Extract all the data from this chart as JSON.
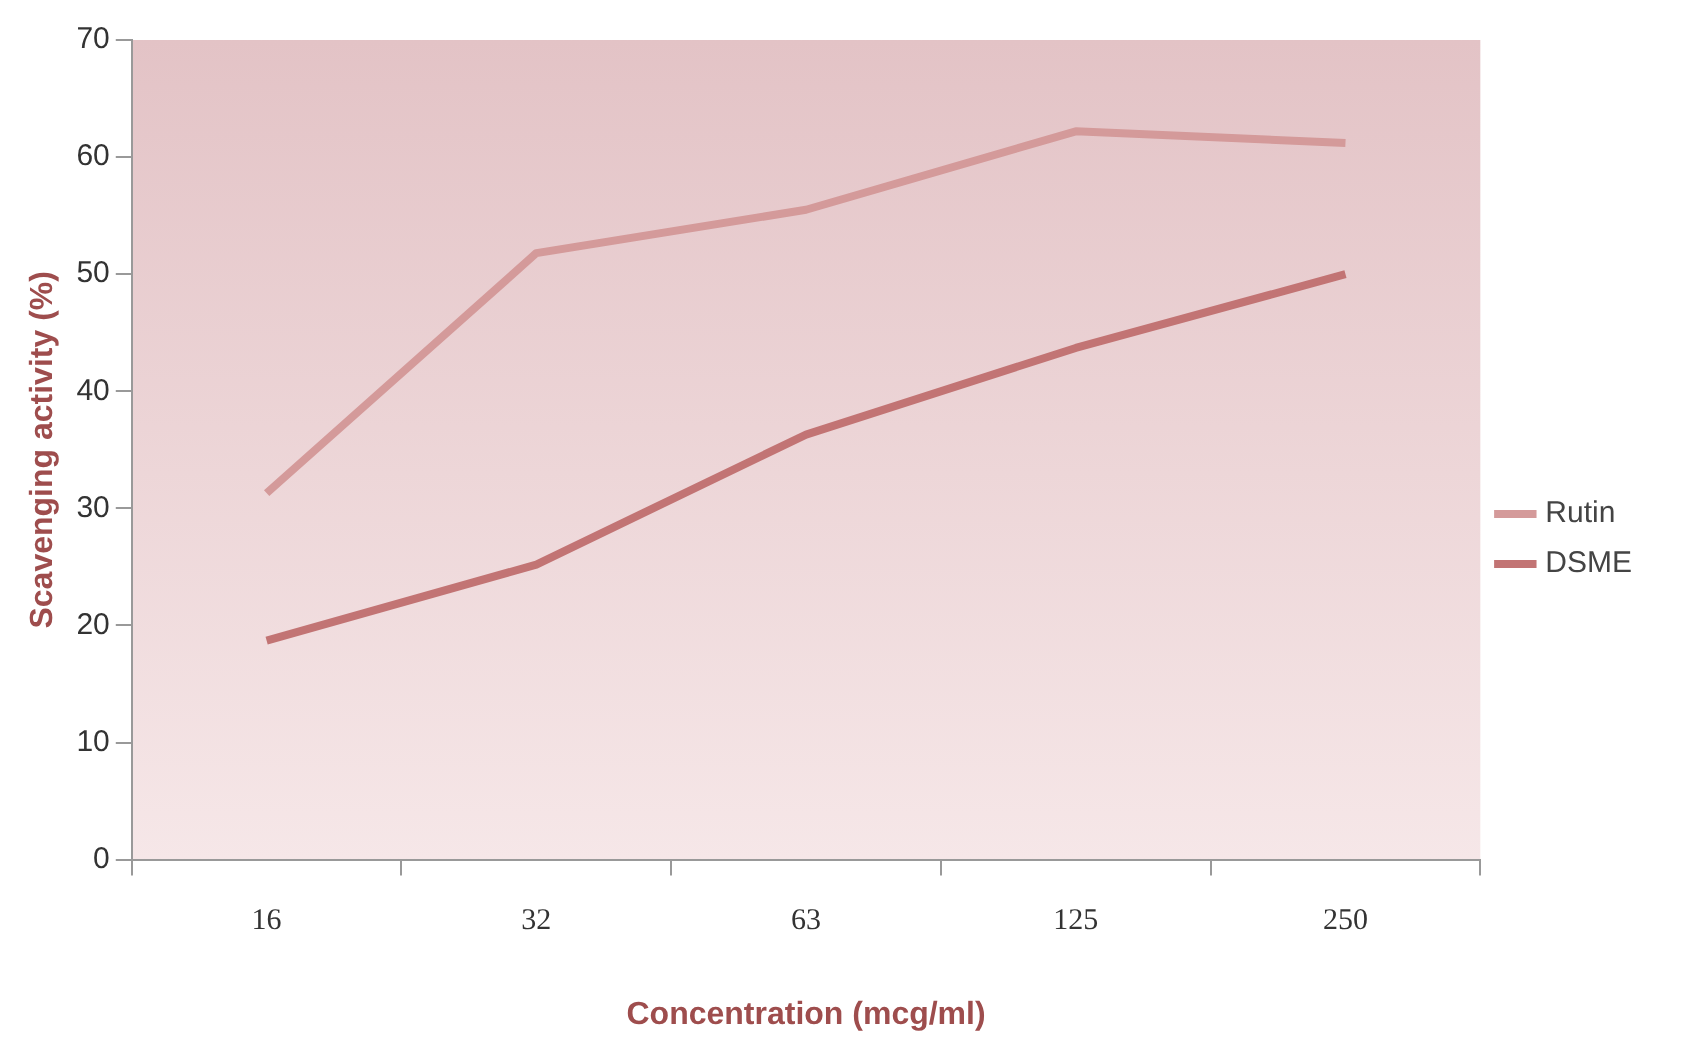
{
  "chart_data": {
    "type": "line",
    "xlabel": "Concentration (mcg/ml)",
    "ylabel": "Scavenging activity (%)",
    "categories": [
      "16",
      "32",
      "63",
      "125",
      "250"
    ],
    "series": [
      {
        "name": "Rutin",
        "color": "#d49a9a",
        "values": [
          31.3,
          51.8,
          55.5,
          62.2,
          61.2
        ]
      },
      {
        "name": "DSME",
        "color": "#c27474",
        "values": [
          18.7,
          25.2,
          36.3,
          43.7,
          50
        ]
      }
    ],
    "ylim": [
      0,
      70
    ],
    "yticks": [
      0,
      10,
      20,
      30,
      40,
      50,
      60,
      70
    ],
    "grid": false,
    "legend": "right",
    "marker": "none",
    "line_style": "solid"
  }
}
